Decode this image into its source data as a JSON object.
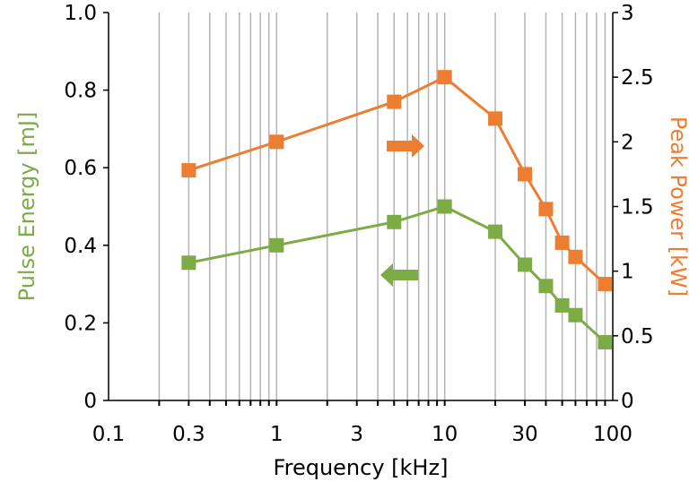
{
  "chart_data": {
    "type": "line",
    "xlabel": "Frequency [kHz]",
    "ylabel_left": "Pulse Energy [mJ]",
    "ylabel_right": "Peak Power [kW]",
    "x_scale": "log",
    "xlim": [
      0.1,
      100
    ],
    "ylim_left": [
      0,
      1.0
    ],
    "ylim_right": [
      0,
      3
    ],
    "x_ticks": [
      {
        "value": 0.1,
        "label": "0.1"
      },
      {
        "value": 0.3,
        "label": "0.3"
      },
      {
        "value": 1,
        "label": "1"
      },
      {
        "value": 3,
        "label": "3"
      },
      {
        "value": 10,
        "label": "10"
      },
      {
        "value": 30,
        "label": "30"
      },
      {
        "value": 100,
        "label": "100"
      }
    ],
    "y_left_ticks": [
      {
        "value": 0,
        "label": "0"
      },
      {
        "value": 0.2,
        "label": "0.2"
      },
      {
        "value": 0.4,
        "label": "0.4"
      },
      {
        "value": 0.6,
        "label": "0.6"
      },
      {
        "value": 0.8,
        "label": "0.8"
      },
      {
        "value": 1.0,
        "label": "1.0"
      }
    ],
    "y_right_ticks": [
      {
        "value": 0,
        "label": "0"
      },
      {
        "value": 0.5,
        "label": "0.5"
      },
      {
        "value": 1,
        "label": "1"
      },
      {
        "value": 1.5,
        "label": "1.5"
      },
      {
        "value": 2,
        "label": "2"
      },
      {
        "value": 2.5,
        "label": "2.5"
      },
      {
        "value": 3,
        "label": "3"
      }
    ],
    "grid": "vertical minor and major lines (log)",
    "series": [
      {
        "axis": "left",
        "color": "#7dab45",
        "marker": "square",
        "x": [
          0.3,
          1,
          5,
          10,
          20,
          30,
          40,
          50,
          60,
          90
        ],
        "y": [
          0.355,
          0.4,
          0.46,
          0.5,
          0.435,
          0.35,
          0.295,
          0.245,
          0.22,
          0.15
        ]
      },
      {
        "axis": "right",
        "color": "#ed7d31",
        "marker": "square",
        "x": [
          0.3,
          1,
          5,
          10,
          20,
          30,
          40,
          50,
          60,
          90
        ],
        "y": [
          1.78,
          2.0,
          2.31,
          2.5,
          2.18,
          1.75,
          1.48,
          1.22,
          1.11,
          0.9
        ]
      }
    ],
    "annotations": [
      {
        "type": "arrow",
        "direction": "left",
        "color": "#7dab45",
        "meaning": "left axis"
      },
      {
        "type": "arrow",
        "direction": "right",
        "color": "#ed7d31",
        "meaning": "right axis"
      }
    ]
  },
  "colors": {
    "pulse_energy": "#7dab45",
    "peak_power": "#ed7d31",
    "grid": "#b3b3b3",
    "axis": "#000000"
  }
}
